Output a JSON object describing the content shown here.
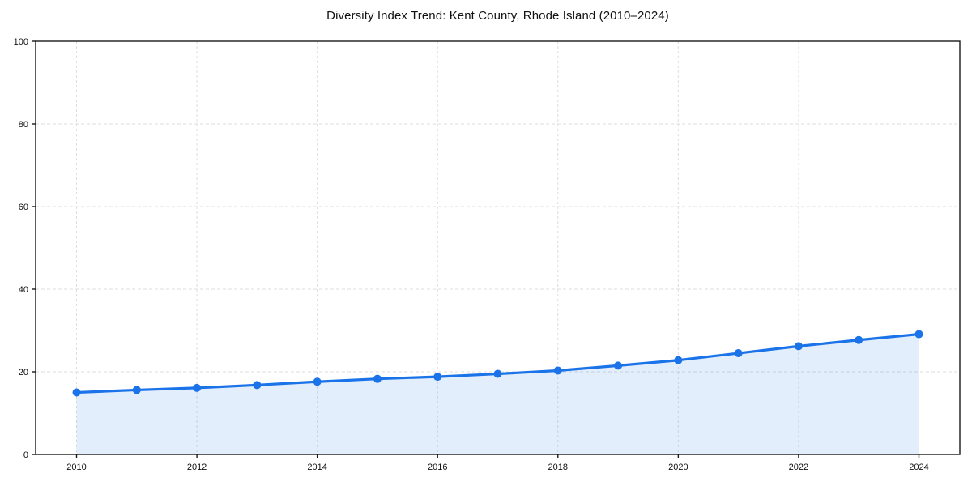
{
  "page": {
    "background": "#ffffff"
  },
  "chart_data": {
    "type": "line",
    "title": "Diversity Index Trend: Kent County, Rhode Island (2010–2024)",
    "series_name": "Diversity Index",
    "x": [
      2010,
      2011,
      2012,
      2013,
      2014,
      2015,
      2016,
      2017,
      2018,
      2019,
      2020,
      2021,
      2022,
      2023,
      2024
    ],
    "values": [
      15.0,
      15.6,
      16.1,
      16.8,
      17.6,
      18.3,
      18.8,
      19.5,
      20.3,
      21.5,
      22.8,
      24.5,
      26.2,
      27.7,
      29.1
    ],
    "xlabel": "",
    "ylabel": "",
    "xlim": [
      2009.32,
      2024.68
    ],
    "ylim": [
      0,
      100
    ],
    "xticks": [
      2010,
      2012,
      2014,
      2016,
      2018,
      2020,
      2022,
      2024
    ],
    "yticks": [
      0,
      20,
      40,
      60,
      80,
      100
    ],
    "grid": "dashed",
    "area_fill": true,
    "markers": true,
    "legend": "none",
    "colors": {
      "line": "#1a73e8",
      "marker": "#1a73e8",
      "area": "rgba(26,115,232,0.12)",
      "grid": "#dddddd",
      "spine": "#1a1a1a",
      "tick_text": "#111111",
      "title_text": "#111111"
    }
  }
}
